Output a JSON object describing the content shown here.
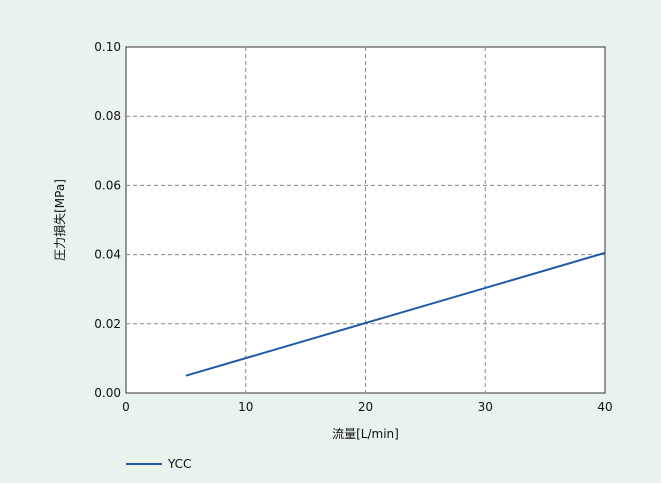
{
  "chart_data": {
    "type": "line",
    "xlabel": "流量[L/min]",
    "ylabel": "圧力損失[MPa]",
    "xlim": [
      0,
      40
    ],
    "ylim": [
      0,
      0.1
    ],
    "x_ticks": [
      "0",
      "10",
      "20",
      "30",
      "40"
    ],
    "y_ticks": [
      "0.00",
      "0.02",
      "0.04",
      "0.06",
      "0.08",
      "0.10"
    ],
    "grid": true,
    "legend_position": "bottom-left",
    "series": [
      {
        "name": "YCC",
        "color": "#1f5aa6",
        "x": [
          5,
          40
        ],
        "y": [
          0.005,
          0.0405
        ]
      }
    ]
  }
}
